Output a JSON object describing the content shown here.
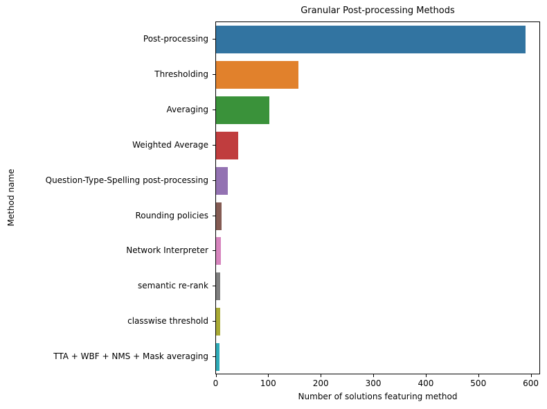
{
  "chart_data": {
    "type": "bar",
    "orientation": "horizontal",
    "title": "Granular Post-processing Methods",
    "xlabel": "Number of solutions featuring method",
    "ylabel": "Method name",
    "xlim": [
      0,
      620
    ],
    "xticks": [
      0,
      100,
      200,
      300,
      400,
      500,
      600
    ],
    "grid": false,
    "legend": null,
    "categories": [
      "Post-processing",
      "Thresholding",
      "Averaging",
      "Weighted Average",
      "Question-Type-Spelling post-processing",
      "Rounding policies",
      "Network Interpreter",
      "semantic re-rank",
      "classwise threshold",
      "TTA + WBF + NMS + Mask averaging"
    ],
    "values": [
      589,
      157,
      102,
      42,
      23,
      10,
      9,
      8,
      8,
      7
    ],
    "colors": [
      "#3274a1",
      "#e1812c",
      "#3a923a",
      "#c03d3e",
      "#9372b2",
      "#845b53",
      "#d684bd",
      "#7f7f7f",
      "#a9aa35",
      "#2eabb8"
    ]
  }
}
